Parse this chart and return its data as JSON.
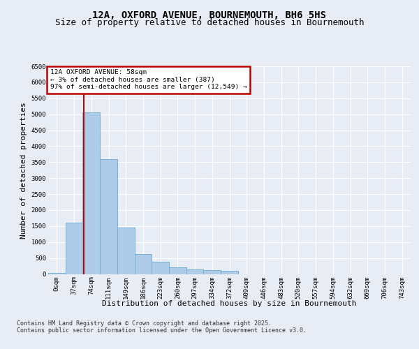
{
  "title": "12A, OXFORD AVENUE, BOURNEMOUTH, BH6 5HS",
  "subtitle": "Size of property relative to detached houses in Bournemouth",
  "xlabel": "Distribution of detached houses by size in Bournemouth",
  "ylabel": "Number of detached properties",
  "bin_labels": [
    "0sqm",
    "37sqm",
    "74sqm",
    "111sqm",
    "149sqm",
    "186sqm",
    "223sqm",
    "260sqm",
    "297sqm",
    "334sqm",
    "372sqm",
    "409sqm",
    "446sqm",
    "483sqm",
    "520sqm",
    "557sqm",
    "594sqm",
    "632sqm",
    "669sqm",
    "706sqm",
    "743sqm"
  ],
  "bar_heights": [
    30,
    1600,
    5050,
    3600,
    1450,
    620,
    380,
    200,
    150,
    120,
    100,
    0,
    0,
    0,
    0,
    0,
    0,
    0,
    0,
    0,
    0
  ],
  "bar_color": "#aecce8",
  "bar_edgecolor": "#6aaad4",
  "vline_x": 1.58,
  "vline_color": "#bb0000",
  "annotation_title": "12A OXFORD AVENUE: 58sqm",
  "annotation_line1": "← 3% of detached houses are smaller (387)",
  "annotation_line2": "97% of semi-detached houses are larger (12,549) →",
  "annotation_box_color": "#bb0000",
  "ylim": [
    0,
    6500
  ],
  "yticks": [
    0,
    500,
    1000,
    1500,
    2000,
    2500,
    3000,
    3500,
    4000,
    4500,
    5000,
    5500,
    6000,
    6500
  ],
  "footer_line1": "Contains HM Land Registry data © Crown copyright and database right 2025.",
  "footer_line2": "Contains public sector information licensed under the Open Government Licence v3.0.",
  "bg_color": "#e8edf5",
  "plot_bg_color": "#e8edf5",
  "grid_color": "#ffffff",
  "title_fontsize": 10,
  "subtitle_fontsize": 9,
  "tick_fontsize": 6.5,
  "label_fontsize": 8,
  "footer_fontsize": 6
}
